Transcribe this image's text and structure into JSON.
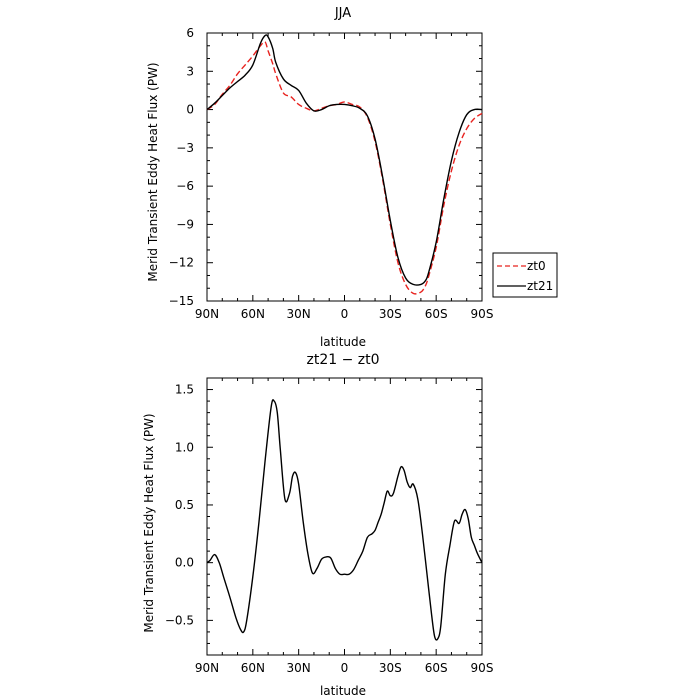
{
  "chart_data": [
    {
      "type": "line",
      "title": "JJA",
      "xlabel": "latitude",
      "ylabel": "Merid Transient Eddy Heat Flux (PW)",
      "xlim": [
        90,
        -90
      ],
      "ylim": [
        -15,
        6
      ],
      "x_ticks": [
        {
          "value": 90,
          "label": "90N"
        },
        {
          "value": 60,
          "label": "60N"
        },
        {
          "value": 30,
          "label": "30N"
        },
        {
          "value": 0,
          "label": "0"
        },
        {
          "value": -30,
          "label": "30S"
        },
        {
          "value": -60,
          "label": "60S"
        },
        {
          "value": -90,
          "label": "90S"
        }
      ],
      "y_ticks": [
        6,
        3,
        0,
        -3,
        -6,
        -9,
        -12,
        -15
      ],
      "y_tick_labels": [
        "6",
        "3",
        "0",
        "−3",
        "−6",
        "−9",
        "−12",
        "−15"
      ],
      "legend_position": "right",
      "series": [
        {
          "name": "zt0",
          "color": "#e8231f",
          "dash": "dashed",
          "x": [
            90,
            85,
            80,
            75,
            70,
            65,
            60,
            55,
            52,
            50,
            47,
            45,
            40,
            35,
            30,
            25,
            20,
            15,
            10,
            5,
            0,
            -5,
            -10,
            -15,
            -20,
            -25,
            -30,
            -35,
            -40,
            -45,
            -50,
            -53,
            -55,
            -60,
            -65,
            -70,
            -75,
            -80,
            -85,
            -90
          ],
          "y": [
            0.0,
            0.4,
            1.2,
            1.9,
            2.8,
            3.5,
            4.2,
            5.0,
            5.3,
            4.6,
            3.6,
            2.8,
            1.3,
            1.0,
            0.4,
            0.1,
            -0.1,
            0.1,
            0.3,
            0.4,
            0.6,
            0.4,
            0.2,
            -0.6,
            -2.5,
            -5.5,
            -9.0,
            -12.0,
            -13.7,
            -14.4,
            -14.3,
            -13.8,
            -13.1,
            -10.8,
            -7.5,
            -4.8,
            -2.8,
            -1.5,
            -0.7,
            -0.3
          ]
        },
        {
          "name": "zt21",
          "color": "#000000",
          "dash": "solid",
          "x": [
            90,
            85,
            80,
            75,
            70,
            65,
            60,
            55,
            52,
            50,
            47,
            45,
            40,
            35,
            30,
            25,
            20,
            15,
            10,
            5,
            0,
            -5,
            -10,
            -15,
            -20,
            -25,
            -30,
            -35,
            -40,
            -45,
            -50,
            -53,
            -55,
            -60,
            -65,
            -70,
            -75,
            -80,
            -85,
            -90
          ],
          "y": [
            0.0,
            0.5,
            1.1,
            1.7,
            2.2,
            2.7,
            3.5,
            5.2,
            5.8,
            5.7,
            4.8,
            3.7,
            2.4,
            1.9,
            1.5,
            0.5,
            -0.1,
            0.0,
            0.3,
            0.4,
            0.4,
            0.3,
            0.1,
            -0.5,
            -2.3,
            -5.3,
            -8.7,
            -11.6,
            -13.2,
            -13.7,
            -13.7,
            -13.4,
            -12.8,
            -10.4,
            -7.0,
            -4.0,
            -1.8,
            -0.4,
            0.0,
            0.0
          ]
        }
      ]
    },
    {
      "type": "line",
      "title": "zt21 − zt0",
      "xlabel": "latitude",
      "ylabel": "Merid Transient Eddy Heat Flux (PW)",
      "xlim": [
        90,
        -90
      ],
      "ylim": [
        -0.8,
        1.6
      ],
      "x_ticks": [
        {
          "value": 90,
          "label": "90N"
        },
        {
          "value": 60,
          "label": "60N"
        },
        {
          "value": 30,
          "label": "30N"
        },
        {
          "value": 0,
          "label": "0"
        },
        {
          "value": -30,
          "label": "30S"
        },
        {
          "value": -60,
          "label": "60S"
        },
        {
          "value": -90,
          "label": "90S"
        }
      ],
      "y_ticks": [
        1.5,
        1.0,
        0.5,
        0.0,
        -0.5
      ],
      "y_tick_labels": [
        "1.5",
        "1.0",
        "0.5",
        "0.0",
        "−0.5"
      ],
      "series": [
        {
          "color": "#000000",
          "dash": "solid",
          "x": [
            90,
            88,
            85,
            82,
            79,
            75,
            71,
            68,
            66,
            64,
            60,
            56,
            52,
            48,
            46,
            44,
            42,
            39,
            36,
            34,
            32,
            30,
            27,
            24,
            21,
            18,
            15,
            12,
            9,
            6,
            3,
            0,
            -3,
            -6,
            -9,
            -12,
            -15,
            -18,
            -20,
            -22,
            -24,
            -26,
            -28,
            -30,
            -32,
            -35,
            -37,
            -39,
            -41,
            -43,
            -45,
            -48,
            -51,
            -54,
            -57,
            -59,
            -61,
            -63,
            -66,
            -69,
            -72,
            -75,
            -77,
            -79,
            -81,
            -83,
            -85,
            -87,
            -90
          ],
          "y": [
            0.0,
            0.02,
            0.07,
            0.0,
            -0.13,
            -0.3,
            -0.48,
            -0.58,
            -0.6,
            -0.5,
            -0.12,
            0.35,
            0.88,
            1.35,
            1.4,
            1.3,
            0.98,
            0.55,
            0.6,
            0.75,
            0.78,
            0.68,
            0.35,
            0.08,
            -0.09,
            -0.05,
            0.03,
            0.05,
            0.04,
            -0.05,
            -0.1,
            -0.1,
            -0.1,
            -0.06,
            0.02,
            0.1,
            0.22,
            0.25,
            0.28,
            0.35,
            0.42,
            0.52,
            0.62,
            0.58,
            0.6,
            0.75,
            0.83,
            0.8,
            0.7,
            0.65,
            0.68,
            0.55,
            0.25,
            -0.1,
            -0.45,
            -0.64,
            -0.66,
            -0.55,
            -0.1,
            0.15,
            0.36,
            0.34,
            0.42,
            0.46,
            0.38,
            0.22,
            0.15,
            0.08,
            0.0
          ]
        }
      ]
    }
  ]
}
